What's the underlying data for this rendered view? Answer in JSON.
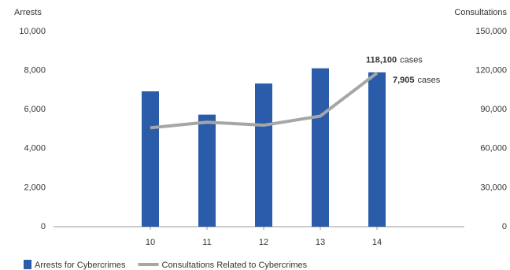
{
  "chart_data": {
    "type": "bar_line",
    "y_label": "Arrests",
    "y2_label": "Consultations",
    "categories": [
      "10",
      "11",
      "12",
      "13",
      "14"
    ],
    "series": [
      {
        "name": "Arrests for Cybercrimes",
        "color": "#2a5caa",
        "type": "bar",
        "values": [
          6933,
          5741,
          7334,
          8113,
          7905
        ],
        "value_labels": [
          null,
          null,
          null,
          null,
          "7,905"
        ]
      },
      {
        "name": "Consultations Related to Cybercrimes",
        "color": "#a6a6a6",
        "type": "line",
        "axis": "y2",
        "values": [
          76000,
          80300,
          78000,
          85000,
          118100
        ],
        "value_labels": [
          null,
          null,
          null,
          null,
          "118,100"
        ]
      }
    ],
    "unit": "cases",
    "ylim": [
      0,
      10000
    ],
    "yticks": [
      0,
      {
        "value": 2000,
        "label": "2,000"
      },
      {
        "value": 4000,
        "label": "4,000"
      },
      {
        "value": 6000,
        "label": "6,000"
      },
      {
        "value": 8000,
        "label": "8,000"
      },
      {
        "value": 10000,
        "label": "10,000"
      }
    ],
    "y2lim": [
      0,
      150000
    ],
    "y2ticks": [
      0,
      {
        "value": 30000,
        "label": "30,000"
      },
      {
        "value": 60000,
        "label": "60,000"
      },
      {
        "value": 90000,
        "label": "90,000"
      },
      {
        "value": 120000,
        "label": "120,000"
      },
      {
        "value": 150000,
        "label": "150,000"
      }
    ]
  }
}
